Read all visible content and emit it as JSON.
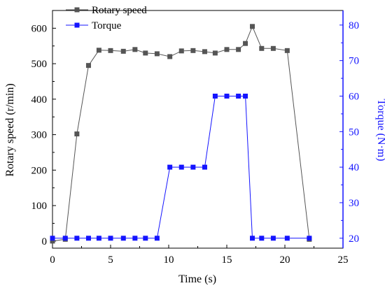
{
  "chart_data": {
    "type": "line",
    "xlabel": "Time (s)",
    "ylabel_left": "Rotary speed (r/min)",
    "ylabel_right": "Torque (N·m)",
    "xlim": [
      0,
      25
    ],
    "ylim_left": [
      -20,
      650
    ],
    "ylim_right": [
      17.2,
      84.1
    ],
    "x_ticks": [
      0,
      5,
      10,
      15,
      20,
      25
    ],
    "y_left_ticks": [
      0,
      100,
      200,
      300,
      400,
      500,
      600
    ],
    "y_right_ticks": [
      20,
      30,
      40,
      50,
      60,
      70,
      80
    ],
    "legend_position": "top-left",
    "grid": false,
    "series": [
      {
        "name": "Rotary speed",
        "axis": "left",
        "color": "#555555",
        "marker": "square",
        "x": [
          0,
          1.1,
          2.1,
          3.1,
          4.0,
          5.0,
          6.1,
          7.1,
          8.0,
          9.0,
          10.1,
          11.1,
          12.1,
          13.1,
          14.0,
          15.0,
          16.0,
          16.6,
          17.2,
          18.0,
          19.0,
          20.2,
          22.1
        ],
        "values": [
          0,
          5,
          302,
          495,
          538,
          537,
          535,
          540,
          530,
          528,
          520,
          536,
          537,
          534,
          530,
          540,
          540,
          557,
          605,
          543,
          543,
          537,
          5
        ]
      },
      {
        "name": "Torque",
        "axis": "right",
        "color": "#1414ff",
        "marker": "square",
        "x": [
          0,
          1.1,
          2.1,
          3.1,
          4.0,
          5.0,
          6.1,
          7.1,
          8.0,
          9.0,
          10.1,
          11.1,
          12.1,
          13.1,
          14.0,
          15.0,
          16.0,
          16.6,
          17.2,
          18.0,
          19.0,
          20.2,
          22.1
        ],
        "values": [
          20,
          20,
          20,
          20,
          20,
          20,
          20,
          20,
          20,
          20,
          40,
          40,
          40,
          40,
          60,
          60,
          60,
          60,
          20,
          20,
          20,
          20,
          20
        ]
      }
    ]
  }
}
